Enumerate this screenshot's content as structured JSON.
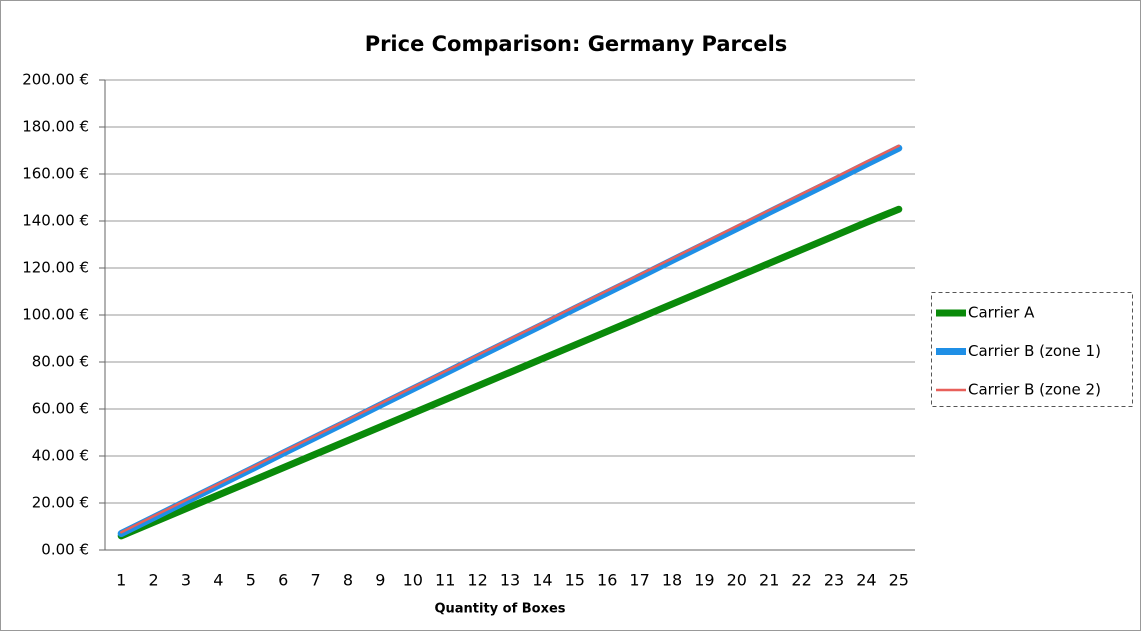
{
  "chart_data": {
    "type": "line",
    "title": "Price Comparison: Germany Parcels",
    "x_label": "Quantity of Boxes",
    "categories": [
      "1",
      "2",
      "3",
      "4",
      "5",
      "6",
      "7",
      "8",
      "9",
      "10",
      "11",
      "12",
      "13",
      "14",
      "15",
      "16",
      "17",
      "18",
      "19",
      "20",
      "21",
      "22",
      "23",
      "24",
      "25"
    ],
    "series": [
      {
        "name": "Carrier A",
        "color": "#0a8a0a",
        "width": 7,
        "values": [
          6,
          11.8,
          17.6,
          23.4,
          29.2,
          35,
          40.8,
          46.6,
          52.4,
          58.2,
          64,
          69.8,
          75.6,
          81.4,
          87.2,
          93,
          98.8,
          104.6,
          110.4,
          116.2,
          122,
          127.8,
          133.6,
          139.4,
          145
        ]
      },
      {
        "name": "Carrier B (zone 1)",
        "color": "#1f8fe6",
        "width": 7,
        "values": [
          7,
          13.8,
          20.7,
          27.5,
          34.3,
          41.2,
          48,
          54.8,
          61.7,
          68.5,
          75.3,
          82.2,
          89,
          95.8,
          102.7,
          109.5,
          116.3,
          123.2,
          130,
          136.8,
          143.7,
          150.5,
          157.3,
          164.2,
          171
        ]
      },
      {
        "name": "Carrier B (zone 2)",
        "color": "#e8605a",
        "width": 2.5,
        "values": [
          7.5,
          14.4,
          21.2,
          28.1,
          34.9,
          41.8,
          48.6,
          55.5,
          62.3,
          69.2,
          76,
          82.9,
          89.8,
          96.6,
          103.5,
          110.3,
          117.2,
          124,
          130.9,
          137.8,
          144.6,
          151.5,
          158.3,
          165.2,
          172
        ]
      }
    ],
    "ylim": [
      0,
      200
    ],
    "yticks": [
      {
        "value": 0,
        "label": "0.00 €"
      },
      {
        "value": 20,
        "label": "20.00 €"
      },
      {
        "value": 40,
        "label": "40.00 €"
      },
      {
        "value": 60,
        "label": "60.00 €"
      },
      {
        "value": 80,
        "label": "80.00 €"
      },
      {
        "value": 100,
        "label": "100.00 €"
      },
      {
        "value": 120,
        "label": "120.00 €"
      },
      {
        "value": 140,
        "label": "140.00 €"
      },
      {
        "value": 160,
        "label": "160.00 €"
      },
      {
        "value": 180,
        "label": "180.00 €"
      },
      {
        "value": 200,
        "label": "200.00 €"
      }
    ],
    "grid": true,
    "legend": "right"
  }
}
